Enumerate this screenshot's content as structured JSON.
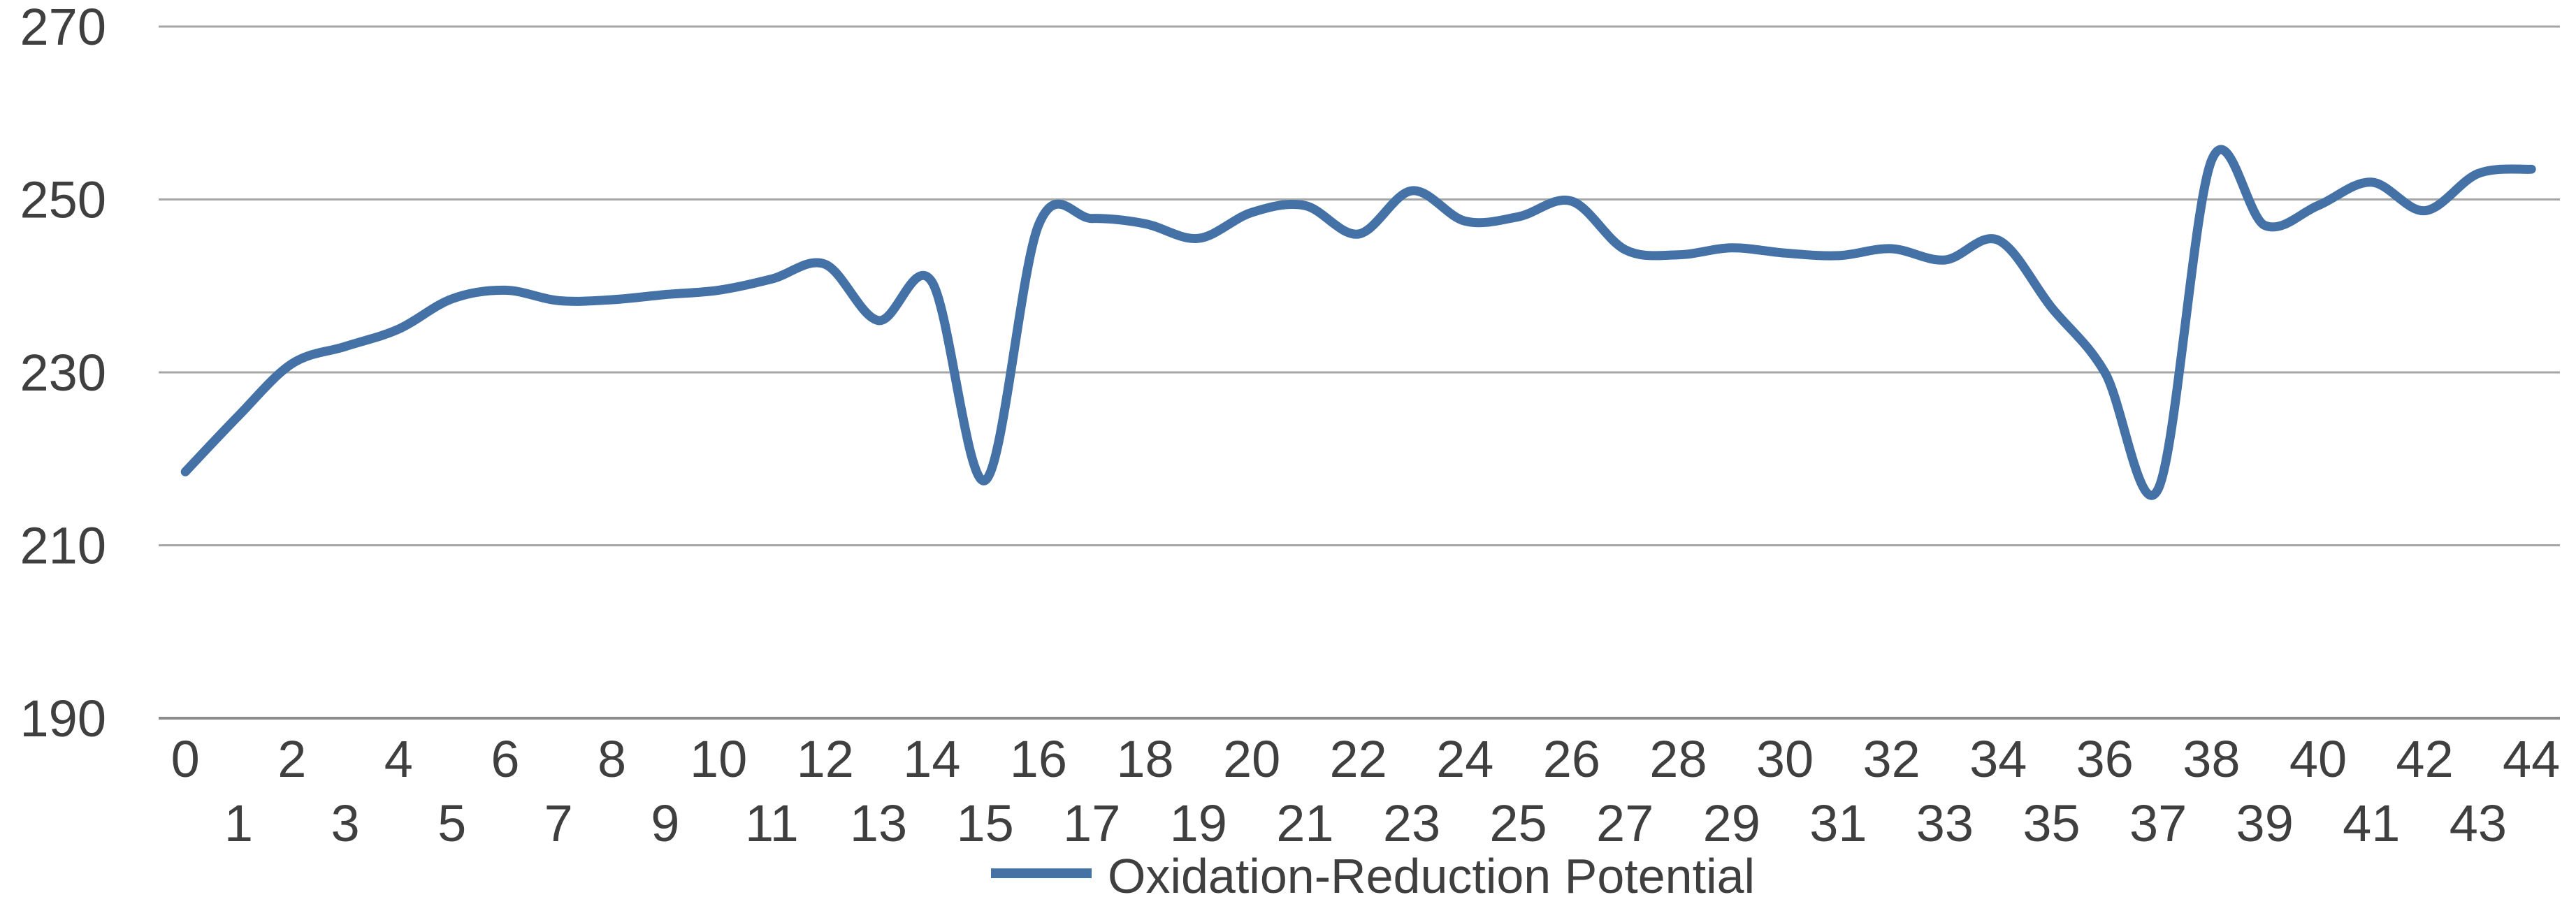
{
  "chart_data": {
    "type": "line",
    "title": "",
    "xlabel": "",
    "ylabel": "",
    "x_labels": [
      0,
      1,
      2,
      3,
      4,
      5,
      6,
      7,
      8,
      9,
      10,
      11,
      12,
      13,
      14,
      15,
      16,
      17,
      18,
      19,
      20,
      21,
      22,
      23,
      24,
      25,
      26,
      27,
      28,
      29,
      30,
      31,
      32,
      33,
      34,
      35,
      36,
      37,
      38,
      39,
      40,
      41,
      42,
      43,
      44
    ],
    "y_ticks": [
      270,
      250,
      230,
      210,
      190
    ],
    "ylim": [
      190,
      270
    ],
    "xlim": [
      0,
      44
    ],
    "grid": true,
    "smooth": true,
    "legend_position": "bottom-center",
    "series": [
      {
        "name": "Oxidation-Reduction Potential",
        "color": "#4471A6",
        "values": [
          218.5,
          225,
          231,
          233,
          235,
          238.5,
          239.5,
          238.3,
          238.4,
          239,
          239.5,
          240.8,
          242.5,
          236,
          240.5,
          217.5,
          247,
          247.8,
          247.2,
          245.5,
          248.5,
          249.3,
          246,
          251,
          247.5,
          248,
          249.8,
          244.2,
          243.6,
          244.4,
          243.8,
          243.5,
          244.3,
          243,
          245.3,
          237.5,
          230,
          216.5,
          254.5,
          247,
          249.3,
          252,
          248.7,
          253,
          253.5
        ]
      }
    ],
    "colors": {
      "line": "#4471A6",
      "gridline": "#A6A6A6",
      "axis_line": "#8C8C8C",
      "tick_text": "#3F3F3F",
      "background": "#FFFFFF"
    }
  }
}
